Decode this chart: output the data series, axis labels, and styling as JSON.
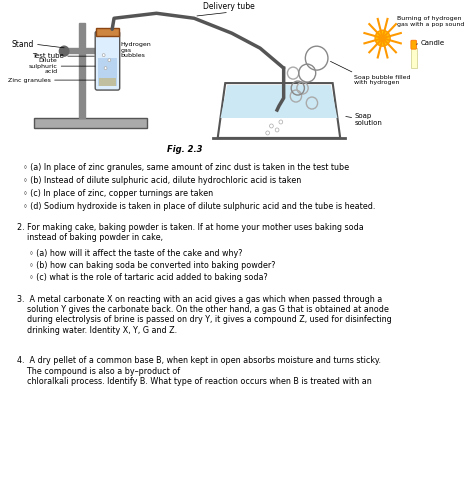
{
  "background_color": "#ffffff",
  "fig_caption": "Fig. 2.3",
  "bullet_items": [
    "◦ (a) In place of zinc granules, same amount of zinc dust is taken in the test tube",
    "◦ (b) Instead of dilute sulphuric acid, dilute hydrochloric acid is taken",
    "◦ (c) In place of zinc, copper turnings are taken",
    "◦ (d) Sodium hydroxide is taken in place of dilute sulphuric acid and the tube is heated."
  ],
  "question2_main": "2. For making cake, baking powder is taken. If at home your mother uses baking soda\n    instead of baking powder in cake,",
  "question2_sub": [
    "◦ (a) how will it affect the taste of the cake and why?",
    "◦ (b) how can baking soda be converted into baking powder?",
    "◦ (c) what is the role of tartaric acid added to baking soda?"
  ],
  "question3": "3.  A metal carbonate X on reacting with an acid gives a gas which when passed through a\n    solution Y gives the carbonate back. On the other hand, a gas G that is obtained at anode\n    during electrolysis of brine is passed on dry Y, it gives a compound Z, used for disinfecting\n    drinking water. Identity X, Y, G and Z.",
  "question4": "4.  A dry pellet of a common base B, when kept in open absorbs moisture and turns sticky.\n    The compound is also a by–product of\n    chloralkali process. Identify B. What type of reaction occurs when B is treated with an"
}
